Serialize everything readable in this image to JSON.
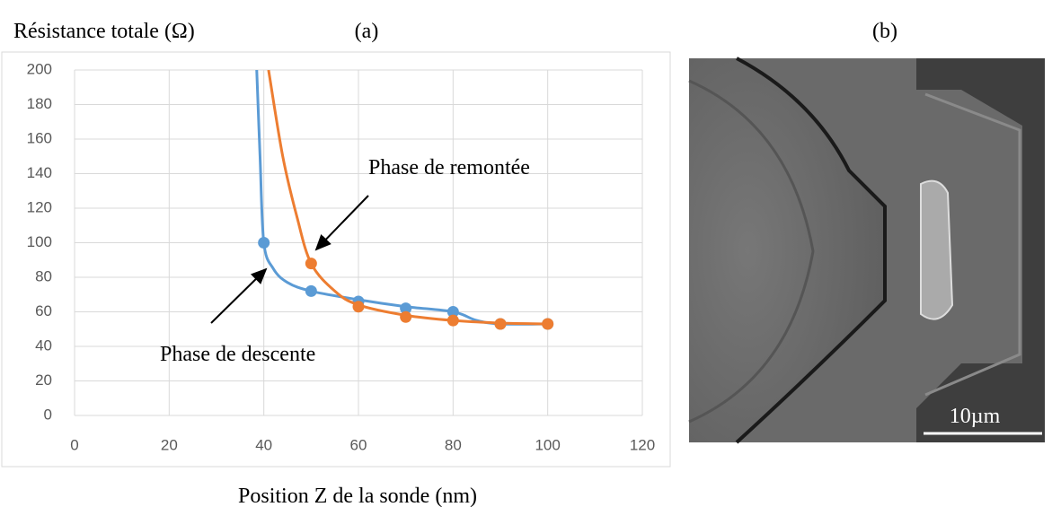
{
  "chart_data": {
    "type": "line",
    "title": "(a)",
    "y_label": "Résistance totale (Ω)",
    "x_label": "Position Z de la sonde (nm)",
    "xlim": [
      0,
      120
    ],
    "xticks": [
      0,
      20,
      40,
      60,
      80,
      100,
      120
    ],
    "ylim": [
      0,
      200
    ],
    "yticks": [
      0,
      20,
      40,
      60,
      80,
      100,
      120,
      140,
      160,
      180,
      200
    ],
    "grid": true,
    "series": [
      {
        "name": "Phase de descente",
        "color": "#5b9bd5",
        "x": [
          40,
          50,
          60,
          70,
          80,
          90,
          100
        ],
        "values": [
          100,
          72,
          66,
          62,
          60,
          53,
          53
        ],
        "curve_x": [
          38.5,
          39.2,
          40,
          42,
          45,
          50,
          60,
          70,
          80,
          85,
          90,
          100
        ],
        "curve_values": [
          200,
          150,
          100,
          85,
          77,
          72,
          67,
          63,
          60,
          55,
          53,
          53
        ]
      },
      {
        "name": "Phase de remontée",
        "color": "#ed7d31",
        "x": [
          50,
          60,
          70,
          80,
          90,
          100
        ],
        "values": [
          88,
          63,
          57,
          55,
          53,
          53
        ],
        "curve_x": [
          41,
          44,
          47,
          50,
          55,
          60,
          70,
          80,
          90,
          100
        ],
        "curve_values": [
          200,
          150,
          115,
          88,
          72,
          64,
          58,
          55,
          53.5,
          53
        ]
      }
    ]
  },
  "image": {
    "label": "(b)",
    "scale_bar": "10µm"
  }
}
